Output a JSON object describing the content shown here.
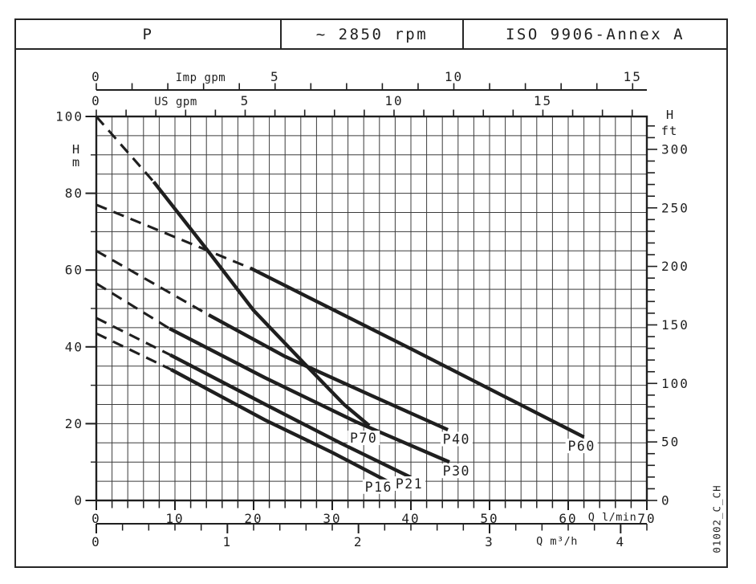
{
  "header": {
    "cells": [
      {
        "text": "P"
      },
      {
        "text": "~ 2850 rpm"
      },
      {
        "text": "ISO 9906-Annex A"
      }
    ]
  },
  "side_code": "01002_C_CH",
  "chart_data": {
    "type": "line",
    "description": "Pump head-capacity curves, solid with dashed low-flow extensions",
    "x_unit_primary": "l/min",
    "y_unit_primary": "m",
    "xlim_lpm": [
      0,
      70
    ],
    "ylim_m": [
      0,
      100
    ],
    "grid": {
      "x_step_lpm": 2,
      "y_step_m": 5,
      "visible": true
    },
    "axes": {
      "top_imp_gpm": {
        "label": "Imp gpm",
        "tick_labels": [
          0,
          5,
          10,
          15
        ],
        "minor_tick_step": 1,
        "minor_tick_max": 15,
        "lpm_per_unit": 4.54609
      },
      "top_us_gpm": {
        "label": "US gpm",
        "tick_labels": [
          0,
          5,
          10,
          15
        ],
        "minor_tick_step": 1,
        "minor_tick_max": 18,
        "lpm_per_unit": 3.785412
      },
      "left_h_m": {
        "label": [
          "H",
          "m"
        ],
        "tick_labels": [
          0,
          20,
          40,
          60,
          80,
          100
        ],
        "minor_tick_step": 10,
        "range": [
          0,
          100
        ]
      },
      "right_h_ft": {
        "label": [
          "H",
          "ft"
        ],
        "tick_labels": [
          0,
          50,
          100,
          150,
          200,
          250,
          300
        ],
        "minor_tick_step": 10,
        "minor_tick_max": 320,
        "m_per_unit": 0.3048
      },
      "bottom_q_lpm": {
        "label": "Q l/min",
        "tick_labels": [
          0,
          10,
          20,
          30,
          40,
          50,
          60,
          70
        ],
        "minor_tick_step": 2,
        "range": [
          0,
          70
        ]
      },
      "bottom_q_m3h": {
        "label": "Q m³/h",
        "tick_labels": [
          0,
          1,
          2,
          3,
          4
        ],
        "minor_tick_step": 0.2,
        "minor_tick_max": 4.2,
        "lpm_per_unit": 16.6667
      }
    },
    "curves": [
      {
        "name": "P70",
        "dashed": [
          [
            0,
            100
          ],
          [
            7.3,
            83
          ]
        ],
        "solid": [
          [
            7.3,
            83
          ],
          [
            14,
            65.5
          ],
          [
            20,
            49.5
          ],
          [
            27,
            34.5
          ],
          [
            31.5,
            25
          ],
          [
            34.7,
            19.5
          ]
        ],
        "label_at_q_h": [
          34.0,
          16.3
        ]
      },
      {
        "name": "P60",
        "dashed": [
          [
            0,
            77
          ],
          [
            19.6,
            60.5
          ]
        ],
        "solid": [
          [
            19.6,
            60.5
          ],
          [
            40,
            39.5
          ],
          [
            62,
            16.5
          ]
        ],
        "label_at_q_h": [
          61.7,
          14.2
        ]
      },
      {
        "name": "P40",
        "dashed": [
          [
            0,
            65
          ],
          [
            14.3,
            48.3
          ]
        ],
        "solid": [
          [
            14.3,
            48.3
          ],
          [
            24,
            37.5
          ],
          [
            35,
            27.3
          ],
          [
            44.7,
            18.4
          ]
        ],
        "label_at_q_h": [
          45.8,
          16.0
        ]
      },
      {
        "name": "P30",
        "dashed": [
          [
            0,
            56.5
          ],
          [
            9.3,
            44.8
          ]
        ],
        "solid": [
          [
            9.3,
            44.8
          ],
          [
            21.4,
            32
          ],
          [
            33,
            20.5
          ],
          [
            44.9,
            10
          ]
        ],
        "label_at_q_h": [
          45.8,
          7.7
        ]
      },
      {
        "name": "P21",
        "dashed": [
          [
            0,
            47.5
          ],
          [
            9.4,
            37.9
          ]
        ],
        "solid": [
          [
            9.4,
            37.9
          ],
          [
            21.4,
            25.1
          ],
          [
            31,
            15
          ],
          [
            40,
            6
          ]
        ],
        "label_at_q_h": [
          39.8,
          4.4
        ]
      },
      {
        "name": "P16",
        "dashed": [
          [
            0,
            43.5
          ],
          [
            9.5,
            34.1
          ]
        ],
        "solid": [
          [
            9.5,
            34.1
          ],
          [
            21.4,
            21
          ],
          [
            30,
            12.5
          ],
          [
            37,
            5
          ]
        ],
        "label_at_q_h": [
          35.9,
          3.6
        ]
      }
    ],
    "colors": {
      "ink": "#1f1f1f",
      "grid": "#3c3c3c",
      "background": "#ffffff"
    }
  }
}
